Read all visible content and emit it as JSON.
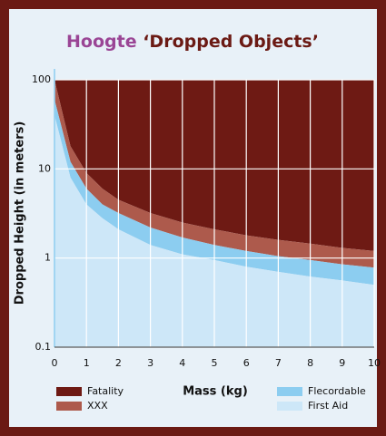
{
  "chart_data": {
    "type": "area",
    "title_parts": [
      "Hoogte",
      "‘Dropped Objects’"
    ],
    "x_label": "Mass (kg)",
    "y_label": "Dropped Height (in meters)",
    "log_y": true,
    "grid": true,
    "x": [
      0,
      0.5,
      1,
      1.5,
      2,
      3,
      4,
      5,
      6,
      7,
      8,
      9,
      10
    ],
    "series": [
      {
        "name": "Fatality",
        "color": "#6e1a14",
        "values": [
          100,
          100,
          100,
          100,
          100,
          100,
          100,
          100,
          100,
          100,
          100,
          100,
          100
        ]
      },
      {
        "name": "XXX",
        "color": "#ad5a4c",
        "values": [
          100,
          18,
          9,
          6,
          4.5,
          3.2,
          2.5,
          2.1,
          1.8,
          1.6,
          1.45,
          1.3,
          1.2
        ]
      },
      {
        "name": "Flecordable",
        "color": "#8ccdf0",
        "values": [
          60,
          12,
          6,
          4,
          3.2,
          2.2,
          1.7,
          1.4,
          1.2,
          1.05,
          0.95,
          0.85,
          0.78
        ]
      },
      {
        "name": "First Aid",
        "color": "#cde7f8",
        "values": [
          40,
          8,
          4,
          2.8,
          2.1,
          1.4,
          1.1,
          0.95,
          0.8,
          0.7,
          0.62,
          0.56,
          0.5
        ]
      }
    ],
    "xlim": [
      0,
      10
    ],
    "xticks": [
      0,
      1,
      2,
      3,
      4,
      5,
      6,
      7,
      8,
      9,
      10
    ],
    "ylim": [
      0.1,
      100
    ],
    "yticks": [
      0.1,
      1,
      10,
      100
    ]
  }
}
